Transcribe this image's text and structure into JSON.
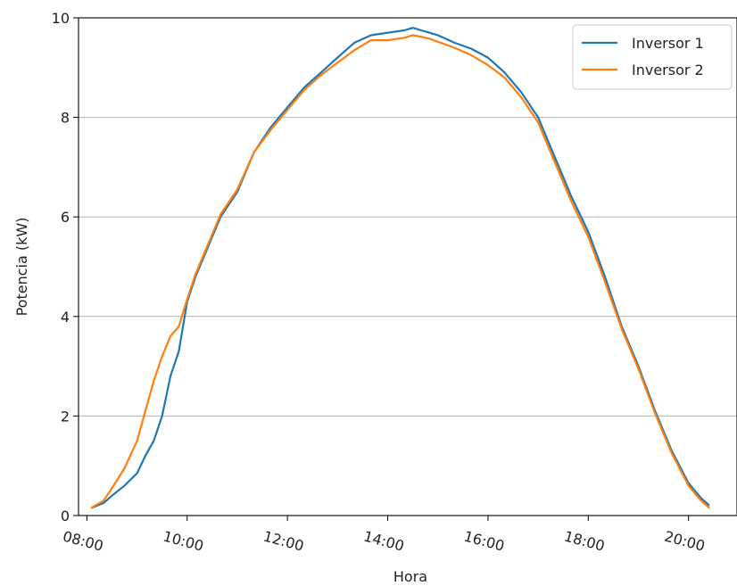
{
  "chart_data": {
    "type": "line",
    "title": "",
    "xlabel": "Hora",
    "ylabel": "Potencia (kW)",
    "xlim": [
      "07:50",
      "20:58"
    ],
    "ylim": [
      0,
      10
    ],
    "x_ticks": [
      "08:00",
      "10:00",
      "12:00",
      "14:00",
      "16:00",
      "18:00",
      "20:00"
    ],
    "y_ticks": [
      0,
      2,
      4,
      6,
      8,
      10
    ],
    "grid": "horizontal",
    "legend_position": "top-right",
    "colors": {
      "Inversor 1": "#1f77b4",
      "Inversor 2": "#ff7f0e"
    },
    "series": [
      {
        "name": "Inversor 1",
        "x": [
          "08:05",
          "08:20",
          "08:30",
          "08:45",
          "09:00",
          "09:10",
          "09:20",
          "09:30",
          "09:40",
          "09:50",
          "10:00",
          "10:10",
          "10:20",
          "10:40",
          "11:00",
          "11:20",
          "11:40",
          "12:00",
          "12:20",
          "12:40",
          "13:00",
          "13:20",
          "13:40",
          "14:00",
          "14:20",
          "14:30",
          "14:40",
          "14:50",
          "15:00",
          "15:20",
          "15:40",
          "16:00",
          "16:20",
          "16:40",
          "17:00",
          "17:20",
          "17:40",
          "18:00",
          "18:20",
          "18:40",
          "19:00",
          "19:20",
          "19:40",
          "20:00",
          "20:15",
          "20:25"
        ],
        "y": [
          0.15,
          0.25,
          0.4,
          0.6,
          0.85,
          1.2,
          1.5,
          2.0,
          2.8,
          3.3,
          4.3,
          4.8,
          5.2,
          6.0,
          6.5,
          7.3,
          7.8,
          8.2,
          8.6,
          8.9,
          9.2,
          9.5,
          9.65,
          9.7,
          9.75,
          9.8,
          9.75,
          9.7,
          9.65,
          9.5,
          9.38,
          9.2,
          8.9,
          8.5,
          8.0,
          7.2,
          6.4,
          5.7,
          4.8,
          3.8,
          3.0,
          2.1,
          1.3,
          0.65,
          0.35,
          0.2
        ]
      },
      {
        "name": "Inversor 2",
        "x": [
          "08:05",
          "08:20",
          "08:30",
          "08:45",
          "09:00",
          "09:10",
          "09:20",
          "09:30",
          "09:40",
          "09:50",
          "10:00",
          "10:10",
          "10:20",
          "10:40",
          "11:00",
          "11:20",
          "11:40",
          "12:00",
          "12:20",
          "12:40",
          "13:00",
          "13:20",
          "13:40",
          "14:00",
          "14:20",
          "14:30",
          "14:40",
          "14:50",
          "15:00",
          "15:20",
          "15:40",
          "16:00",
          "16:20",
          "16:40",
          "17:00",
          "17:20",
          "17:40",
          "18:00",
          "18:20",
          "18:40",
          "19:00",
          "19:20",
          "19:40",
          "20:00",
          "20:15",
          "20:25"
        ],
        "y": [
          0.15,
          0.3,
          0.55,
          0.95,
          1.5,
          2.1,
          2.7,
          3.2,
          3.6,
          3.8,
          4.35,
          4.85,
          5.25,
          6.05,
          6.55,
          7.3,
          7.75,
          8.15,
          8.55,
          8.85,
          9.1,
          9.35,
          9.55,
          9.55,
          9.6,
          9.65,
          9.62,
          9.58,
          9.52,
          9.4,
          9.25,
          9.05,
          8.8,
          8.4,
          7.9,
          7.1,
          6.3,
          5.6,
          4.7,
          3.75,
          2.95,
          2.05,
          1.25,
          0.6,
          0.3,
          0.15
        ]
      }
    ]
  }
}
